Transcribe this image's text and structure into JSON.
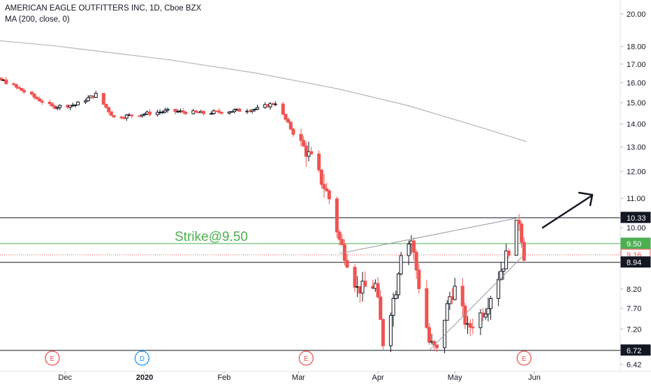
{
  "chart_data": {
    "type": "candlestick",
    "title": "AMERICAN EAGLE OUTFITTERS INC, 1D, Cboe BZX",
    "indicator": "MA (200, close, 0)",
    "annotation": "Strike@9.50",
    "y_scale": "log",
    "ylim": [
      6.3,
      21.2
    ],
    "y_ticks": [
      "20.00",
      "18.00",
      "17.00",
      "16.00",
      "15.00",
      "14.00",
      "13.00",
      "12.00",
      "11.00",
      "10.00",
      "8.20",
      "7.70",
      "7.20",
      "6.42"
    ],
    "x_ticks": [
      "Dec",
      "2020",
      "Feb",
      "Mar",
      "Apr",
      "May",
      "Jun"
    ],
    "price_labels": [
      {
        "text": "10.33",
        "value": 10.33,
        "style": "level"
      },
      {
        "text": "9.50",
        "value": 9.5,
        "style": "strike"
      },
      {
        "text": "9.16",
        "value": 9.16,
        "style": "last"
      },
      {
        "text": "8.94",
        "value": 8.94,
        "style": "level"
      },
      {
        "text": "6.72",
        "value": 6.72,
        "style": "level"
      }
    ],
    "horizontal_lines": [
      {
        "value": 10.33,
        "style": "level"
      },
      {
        "value": 9.5,
        "style": "strike"
      },
      {
        "value": 9.16,
        "style": "last"
      },
      {
        "value": 8.94,
        "style": "level"
      },
      {
        "value": 6.72,
        "style": "level"
      }
    ],
    "event_markers": [
      {
        "label": "E",
        "kind": "earnings",
        "date": "2019-11-26"
      },
      {
        "label": "D",
        "kind": "dividend",
        "date": "2019-12-31"
      },
      {
        "label": "E",
        "kind": "earnings",
        "date": "2020-03-04"
      },
      {
        "label": "E",
        "kind": "earnings",
        "date": "2020-05-28"
      }
    ],
    "trend_lines": [
      {
        "from": {
          "date": "2020-03-17",
          "price": 9.2
        },
        "to": {
          "date": "2020-05-26",
          "price": 10.33
        }
      },
      {
        "from": {
          "date": "2020-04-21",
          "price": 6.72
        },
        "to": {
          "date": "2020-05-28",
          "price": 9.16
        }
      }
    ],
    "ma200": [
      {
        "date": "2019-10-21",
        "value": 18.55
      },
      {
        "date": "2019-11-26",
        "value": 18.05
      },
      {
        "date": "2020-01-10",
        "value": 17.25
      },
      {
        "date": "2020-02-14",
        "value": 16.5
      },
      {
        "date": "2020-03-16",
        "value": 15.7
      },
      {
        "date": "2020-04-13",
        "value": 14.85
      },
      {
        "date": "2020-05-11",
        "value": 13.85
      },
      {
        "date": "2020-05-29",
        "value": 13.22
      }
    ],
    "colors": {
      "up": "#131722",
      "down": "#ef5350",
      "strike": "#4caf50",
      "last": "#ef5350",
      "ma": "#b2b5be",
      "dividend": "#2196f3",
      "level": "#131722"
    }
  }
}
